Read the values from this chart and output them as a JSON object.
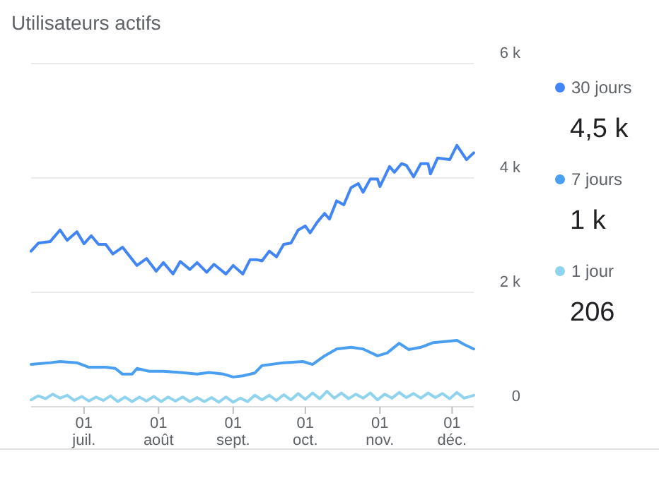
{
  "chart_data": {
    "type": "line",
    "title": "Utilisateurs actifs",
    "xlim": [
      "--06-09",
      "--12-10"
    ],
    "xticks": [
      {
        "value": "--07-01",
        "label": "01\njuil."
      },
      {
        "value": "--08-01",
        "label": "01\naoût"
      },
      {
        "value": "--09-01",
        "label": "01\nsept."
      },
      {
        "value": "--10-01",
        "label": "01\noct."
      },
      {
        "value": "--11-01",
        "label": "01\nnov."
      },
      {
        "value": "--12-01",
        "label": "01\ndéc."
      }
    ],
    "ylim": [
      0,
      6000
    ],
    "yticks": [
      {
        "value": 0,
        "label": "0"
      },
      {
        "value": 2000,
        "label": "2 k"
      },
      {
        "value": 4000,
        "label": "4 k"
      },
      {
        "value": 6000,
        "label": "6 k"
      }
    ],
    "grid": "y",
    "legend": "right",
    "marker": "none",
    "line_style": "solid",
    "annotations": [
      "4,5 k",
      "1 k",
      "206"
    ],
    "series": [
      {
        "name": "30 jours",
        "color": "#4285f4",
        "x": [
          "--06-09",
          "--06-12",
          "--06-17",
          "--06-21",
          "--06-24",
          "--06-28",
          "--07-01",
          "--07-04",
          "--07-07",
          "--07-10",
          "--07-13",
          "--07-17",
          "--07-23",
          "--07-27",
          "--07-31",
          "--08-03",
          "--08-07",
          "--08-10",
          "--08-14",
          "--08-17",
          "--08-21",
          "--08-24",
          "--08-29",
          "--09-01",
          "--09-05",
          "--09-08",
          "--09-11",
          "--09-13",
          "--09-16",
          "--09-19",
          "--09-22",
          "--09-25",
          "--09-28",
          "--10-01",
          "--10-03",
          "--10-06",
          "--10-09",
          "--10-11",
          "--10-14",
          "--10-17",
          "--10-20",
          "--10-23",
          "--10-25",
          "--10-28",
          "--10-31",
          "--11-01",
          "--11-05",
          "--11-07",
          "--11-10",
          "--11-12",
          "--11-15",
          "--11-18",
          "--11-21",
          "--11-22",
          "--11-25",
          "--11-30",
          "--12-03",
          "--12-07",
          "--12-10"
        ],
        "values": [
          2720,
          2860,
          2890,
          3090,
          2910,
          3060,
          2850,
          2990,
          2840,
          2840,
          2670,
          2790,
          2470,
          2590,
          2370,
          2520,
          2320,
          2540,
          2400,
          2520,
          2350,
          2490,
          2320,
          2470,
          2320,
          2570,
          2570,
          2550,
          2720,
          2620,
          2840,
          2860,
          3090,
          3160,
          3040,
          3230,
          3380,
          3280,
          3600,
          3530,
          3830,
          3900,
          3750,
          3980,
          3980,
          3850,
          4200,
          4100,
          4250,
          4220,
          4020,
          4250,
          4250,
          4070,
          4350,
          4320,
          4570,
          4320,
          4440
        ]
      },
      {
        "name": "7 jours",
        "color": "#4a9ff0",
        "x": [
          "--06-09",
          "--06-17",
          "--06-21",
          "--06-28",
          "--07-03",
          "--07-10",
          "--07-14",
          "--07-17",
          "--07-21",
          "--07-23",
          "--07-28",
          "--08-03",
          "--08-10",
          "--08-17",
          "--08-22",
          "--08-28",
          "--09-01",
          "--09-05",
          "--09-10",
          "--09-13",
          "--09-22",
          "--09-30",
          "--10-04",
          "--10-09",
          "--10-14",
          "--10-20",
          "--10-25",
          "--10-31",
          "--11-04",
          "--11-09",
          "--11-13",
          "--11-18",
          "--11-23",
          "--11-28",
          "--12-03",
          "--12-06",
          "--12-10"
        ],
        "values": [
          740,
          770,
          790,
          770,
          690,
          690,
          670,
          570,
          570,
          670,
          620,
          620,
          600,
          570,
          600,
          570,
          520,
          540,
          590,
          720,
          770,
          790,
          740,
          890,
          1010,
          1040,
          1010,
          890,
          940,
          1110,
          1000,
          1040,
          1120,
          1140,
          1160,
          1090,
          1010
        ]
      },
      {
        "name": "1 jour",
        "color": "#8fd3ef",
        "x": [
          "--06-09",
          "--06-12",
          "--06-15",
          "--06-18",
          "--06-21",
          "--06-24",
          "--06-27",
          "--06-30",
          "--07-03",
          "--07-06",
          "--07-09",
          "--07-12",
          "--07-15",
          "--07-18",
          "--07-21",
          "--07-24",
          "--07-27",
          "--07-30",
          "--08-02",
          "--08-05",
          "--08-08",
          "--08-11",
          "--08-14",
          "--08-17",
          "--08-20",
          "--08-23",
          "--08-26",
          "--08-29",
          "--09-01",
          "--09-04",
          "--09-07",
          "--09-10",
          "--09-13",
          "--09-16",
          "--09-19",
          "--09-22",
          "--09-25",
          "--09-28",
          "--10-01",
          "--10-04",
          "--10-07",
          "--10-10",
          "--10-13",
          "--10-16",
          "--10-19",
          "--10-22",
          "--10-25",
          "--10-28",
          "--10-31",
          "--11-03",
          "--11-06",
          "--11-09",
          "--11-12",
          "--11-15",
          "--11-18",
          "--11-21",
          "--11-24",
          "--11-27",
          "--11-30",
          "--12-03",
          "--12-06",
          "--12-10"
        ],
        "values": [
          120,
          190,
          140,
          220,
          150,
          200,
          110,
          180,
          100,
          170,
          110,
          190,
          90,
          170,
          90,
          170,
          100,
          180,
          90,
          170,
          100,
          170,
          90,
          160,
          90,
          160,
          80,
          170,
          80,
          150,
          90,
          200,
          120,
          200,
          110,
          210,
          120,
          230,
          130,
          240,
          140,
          270,
          150,
          240,
          140,
          220,
          150,
          240,
          120,
          220,
          150,
          250,
          160,
          230,
          150,
          240,
          160,
          230,
          140,
          250,
          150,
          200
        ]
      }
    ]
  }
}
